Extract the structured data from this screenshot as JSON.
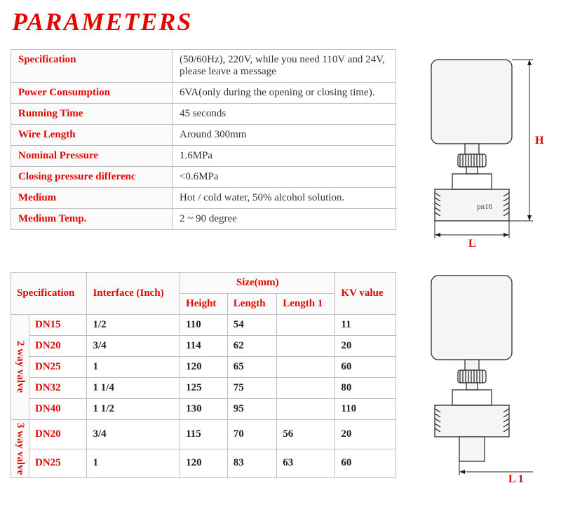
{
  "title": "PARAMETERS",
  "colors": {
    "accent": "#e10600",
    "border": "#bfbfbf",
    "text": "#333333"
  },
  "spec_rows": [
    {
      "label": "Specification",
      "value": "(50/60Hz), 220V, while you need 110V and 24V, please leave a message"
    },
    {
      "label": "Power Consumption",
      "value": "6VA(only during the opening or closing time)."
    },
    {
      "label": "Running Time",
      "value": "45 seconds"
    },
    {
      "label": "Wire Length",
      "value": "Around 300mm"
    },
    {
      "label": "Nominal Pressure",
      "value": "1.6MPa"
    },
    {
      "label": "Closing pressure differenc",
      "value": "<0.6MPa"
    },
    {
      "label": "Medium",
      "value": "Hot /  cold water, 50% alcohol solution."
    },
    {
      "label": "Medium Temp.",
      "value": "2 ~ 90 degree"
    }
  ],
  "size_headers": {
    "spec": "Specification",
    "interface": "Interface (Inch)",
    "size": "Size(mm)",
    "height": "Height",
    "length": "Length",
    "length1": "Length 1",
    "kv": "KV value"
  },
  "groups": {
    "two_way": "2 way valve",
    "three_way": "3 way valve"
  },
  "size_rows_2way": [
    {
      "spec": "DN15",
      "iface": "1/2",
      "h": "110",
      "l": "54",
      "l1": "",
      "kv": "11"
    },
    {
      "spec": "DN20",
      "iface": "3/4",
      "h": "114",
      "l": "62",
      "l1": "",
      "kv": "20"
    },
    {
      "spec": "DN25",
      "iface": "1",
      "h": "120",
      "l": "65",
      "l1": "",
      "kv": "60"
    },
    {
      "spec": "DN32",
      "iface": "1 1/4",
      "h": "125",
      "l": "75",
      "l1": "",
      "kv": "80"
    },
    {
      "spec": "DN40",
      "iface": "1 1/2",
      "h": "130",
      "l": "95",
      "l1": "",
      "kv": "110"
    }
  ],
  "size_rows_3way": [
    {
      "spec": "DN20",
      "iface": "3/4",
      "h": "115",
      "l": "70",
      "l1": "56",
      "kv": "20"
    },
    {
      "spec": "DN25",
      "iface": "1",
      "h": "120",
      "l": "83",
      "l1": "63",
      "kv": "60"
    }
  ],
  "diagram1": {
    "H": "H",
    "L": "L",
    "body_text": "pn16"
  },
  "diagram2": {
    "L1": "L 1"
  }
}
